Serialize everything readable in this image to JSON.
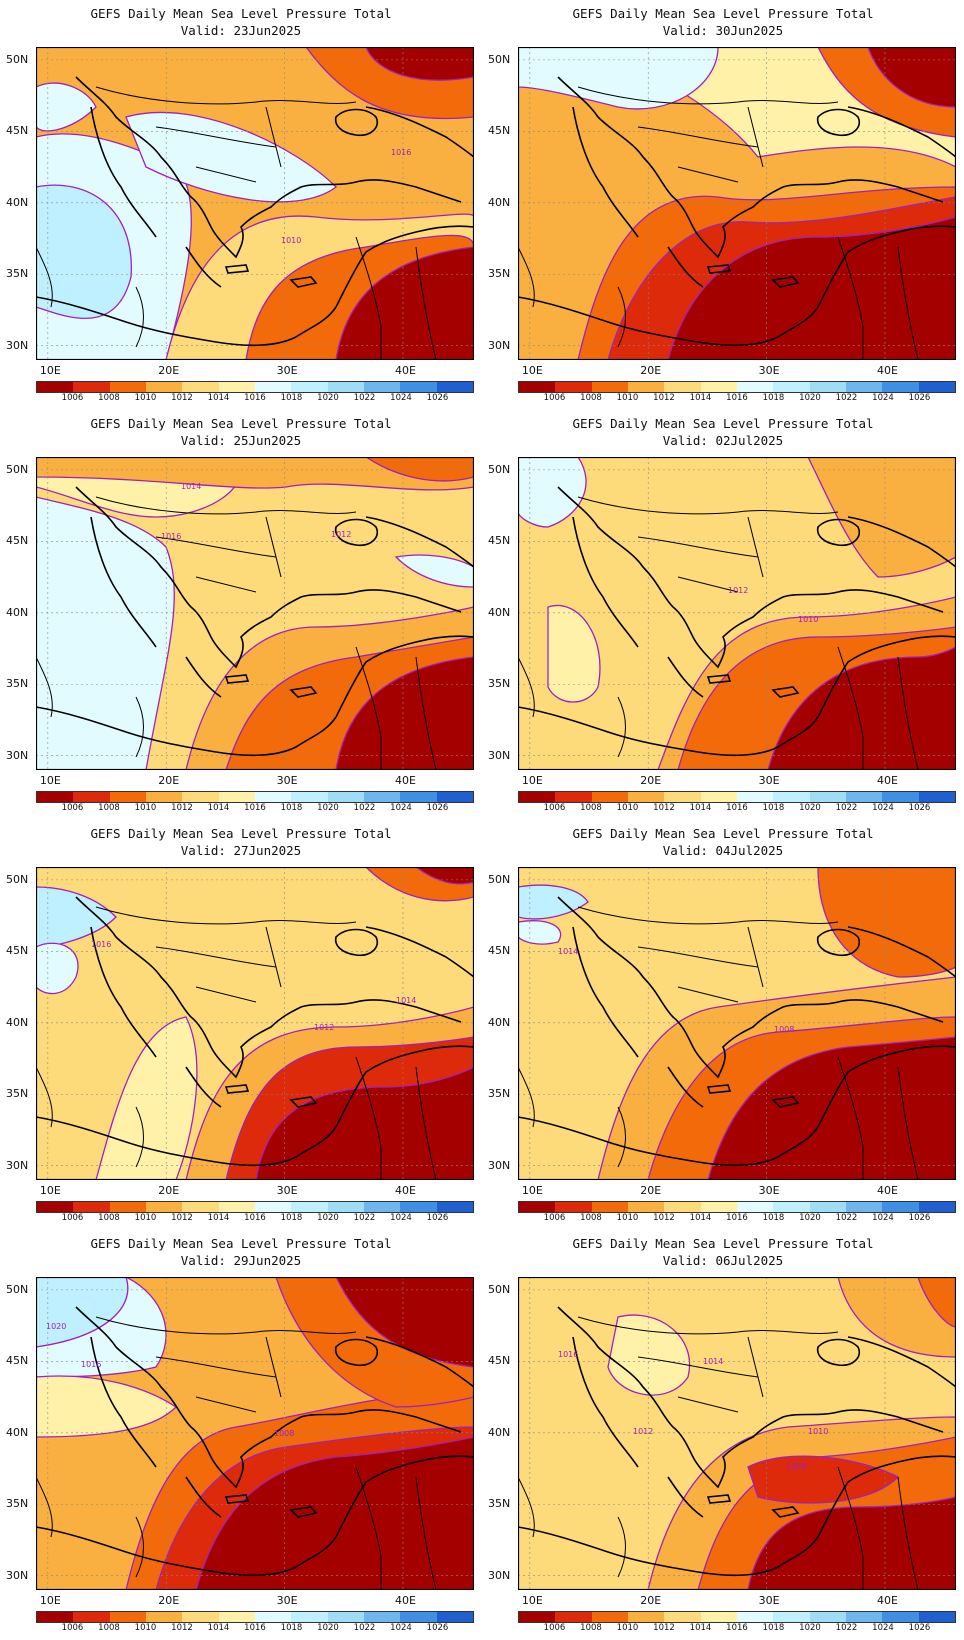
{
  "title": "GEFS Daily Mean Sea Level Pressure Total",
  "valid_prefix": "Valid:",
  "lat_labels": [
    "50N",
    "45N",
    "40N",
    "35N",
    "30N"
  ],
  "lon_labels": [
    "10E",
    "20E",
    "30E",
    "40E"
  ],
  "colorbar": {
    "labels": [
      "1006",
      "1008",
      "1010",
      "1012",
      "1014",
      "1016",
      "1018",
      "1020",
      "1022",
      "1024",
      "1026"
    ],
    "colors": [
      "#a50000",
      "#dc2a0a",
      "#f26a0a",
      "#f9b040",
      "#fddb7a",
      "#fff2a8",
      "#e2fbff",
      "#bff0ff",
      "#9fdcf5",
      "#6fb6ee",
      "#3f8fe5",
      "#1f5fcf"
    ]
  },
  "panels": [
    {
      "valid": "Valid: 23Jun2025",
      "contour_labels": [
        "1016",
        "1010"
      ]
    },
    {
      "valid": "Valid: 30Jun2025",
      "contour_labels": []
    },
    {
      "valid": "Valid: 25Jun2025",
      "contour_labels": [
        "1014",
        "1016",
        "1012"
      ]
    },
    {
      "valid": "Valid: 02Jul2025",
      "contour_labels": [
        "1012",
        "1010"
      ]
    },
    {
      "valid": "Valid: 27Jun2025",
      "contour_labels": [
        "1016",
        "1014",
        "1012"
      ]
    },
    {
      "valid": "Valid: 04Jul2025",
      "contour_labels": [
        "1014",
        "1008"
      ]
    },
    {
      "valid": "Valid: 29Jun2025",
      "contour_labels": [
        "1020",
        "1016",
        "1008"
      ]
    },
    {
      "valid": "Valid: 06Jul2025",
      "contour_labels": [
        "1016",
        "1014",
        "1012",
        "1010",
        "1008"
      ]
    }
  ]
}
